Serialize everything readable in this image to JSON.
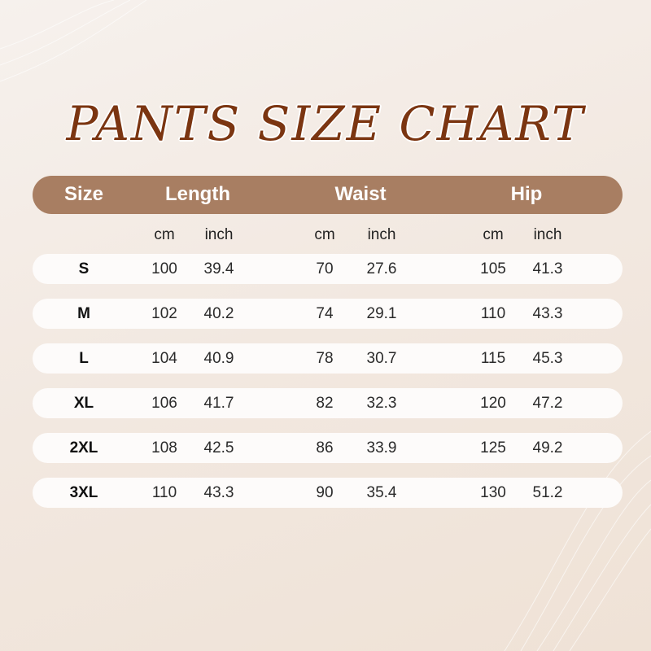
{
  "title": "PANTS SIZE CHART",
  "colors": {
    "header_bar": "#a87e62",
    "title": "#7b3511",
    "row_bg": "#fdfbfa"
  },
  "headers": [
    "Size",
    "Length",
    "Waist",
    "Hip"
  ],
  "units": [
    "cm",
    "inch",
    "cm",
    "inch",
    "cm",
    "inch"
  ],
  "rows": [
    {
      "size": "S",
      "values": [
        "100",
        "39.4",
        "70",
        "27.6",
        "105",
        "41.3"
      ]
    },
    {
      "size": "M",
      "values": [
        "102",
        "40.2",
        "74",
        "29.1",
        "110",
        "43.3"
      ]
    },
    {
      "size": "L",
      "values": [
        "104",
        "40.9",
        "78",
        "30.7",
        "115",
        "45.3"
      ]
    },
    {
      "size": "XL",
      "values": [
        "106",
        "41.7",
        "82",
        "32.3",
        "120",
        "47.2"
      ]
    },
    {
      "size": "2XL",
      "values": [
        "108",
        "42.5",
        "86",
        "33.9",
        "125",
        "49.2"
      ]
    },
    {
      "size": "3XL",
      "values": [
        "110",
        "43.3",
        "90",
        "35.4",
        "130",
        "51.2"
      ]
    }
  ]
}
